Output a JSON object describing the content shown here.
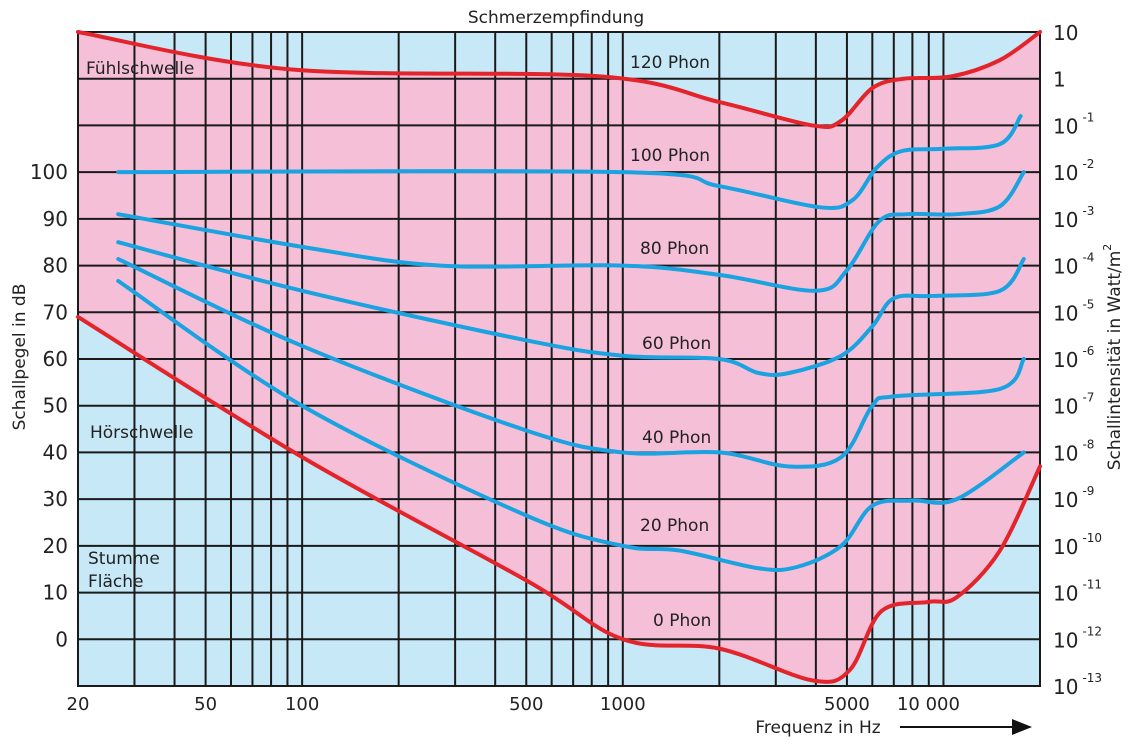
{
  "chart_data": {
    "type": "line",
    "title": "Schmerzempfindung",
    "xlabel": "Frequenz in Hz",
    "ylabel": "Schallpegel in dB",
    "y2label": "Schallintensität in Watt/m",
    "y2label_sup": "2",
    "x_scale": "log",
    "xlim": [
      20,
      20000
    ],
    "ylim": [
      -10,
      130
    ],
    "grid": true,
    "x_gridlines": [
      20,
      30,
      40,
      50,
      60,
      70,
      80,
      90,
      100,
      200,
      300,
      400,
      500,
      600,
      700,
      800,
      900,
      1000,
      2000,
      3000,
      4000,
      5000,
      6000,
      7000,
      8000,
      9000,
      10000,
      20000
    ],
    "x_ticks": [
      {
        "value": 20,
        "label": "20"
      },
      {
        "value": 50,
        "label": "50"
      },
      {
        "value": 100,
        "label": "100"
      },
      {
        "value": 500,
        "label": "500"
      },
      {
        "value": 1000,
        "label": "1000"
      },
      {
        "value": 5000,
        "label": "5000"
      },
      {
        "value": 10000,
        "label": "10 000"
      }
    ],
    "y_ticks": [
      0,
      10,
      20,
      30,
      40,
      50,
      60,
      70,
      80,
      90,
      100
    ],
    "y2_ticks": [
      {
        "dB": 130,
        "base": "10",
        "exp": ""
      },
      {
        "dB": 120,
        "base": "1",
        "exp": ""
      },
      {
        "dB": 110,
        "base": "10",
        "exp": "-1"
      },
      {
        "dB": 100,
        "base": "10",
        "exp": "-2"
      },
      {
        "dB": 90,
        "base": "10",
        "exp": "-3"
      },
      {
        "dB": 80,
        "base": "10",
        "exp": "-4"
      },
      {
        "dB": 70,
        "base": "10",
        "exp": "-5"
      },
      {
        "dB": 60,
        "base": "10",
        "exp": "-6"
      },
      {
        "dB": 50,
        "base": "10",
        "exp": "-7"
      },
      {
        "dB": 40,
        "base": "10",
        "exp": "-8"
      },
      {
        "dB": 30,
        "base": "10",
        "exp": "-9"
      },
      {
        "dB": 20,
        "base": "10",
        "exp": "-10"
      },
      {
        "dB": 10,
        "base": "10",
        "exp": "-11"
      },
      {
        "dB": 0,
        "base": "10",
        "exp": "-12"
      },
      {
        "dB": -10,
        "base": "10",
        "exp": "-13"
      }
    ],
    "series": [
      {
        "name": "120 Phon",
        "color": "#e3242b",
        "boundary": "top",
        "x": [
          20,
          92,
          850,
          2000,
          3900,
          4800,
          6000,
          7500,
          10600,
          15000,
          20000
        ],
        "y": [
          130,
          122,
          120.5,
          115,
          110,
          111,
          118,
          120,
          120.5,
          124,
          130
        ]
      },
      {
        "name": "100 Phon",
        "color": "#1aa3e0",
        "x": [
          26.7,
          1000,
          2000,
          4100,
          5200,
          6200,
          7400,
          10000,
          15000,
          17400
        ],
        "y": [
          100,
          100,
          97,
          92.5,
          94,
          101,
          104.5,
          105,
          106,
          112
        ]
      },
      {
        "name": "80 Phon",
        "color": "#1aa3e0",
        "x": [
          26.7,
          100,
          270,
          1000,
          2000,
          4000,
          5000,
          6300,
          7700,
          11000,
          15000,
          17800
        ],
        "y": [
          91,
          84,
          80,
          80,
          78,
          74.6,
          79,
          89.5,
          91,
          91,
          92.7,
          100
        ]
      },
      {
        "name": "60 Phon",
        "color": "#1aa3e0",
        "x": [
          26.7,
          100,
          500,
          1000,
          2000,
          2650,
          3300,
          4800,
          6000,
          7000,
          9300,
          15000,
          17800
        ],
        "y": [
          85,
          74.6,
          64,
          60.7,
          60,
          57,
          57,
          60.7,
          67,
          73,
          73.5,
          74.6,
          81.4
        ]
      },
      {
        "name": "40 Phon",
        "color": "#1aa3e0",
        "x": [
          26.7,
          100,
          500,
          1000,
          2000,
          3300,
          4800,
          6000,
          7000,
          15000,
          17800
        ],
        "y": [
          81.4,
          62.8,
          44.7,
          40,
          40,
          37,
          39,
          50,
          52,
          53.6,
          60
        ]
      },
      {
        "name": "20 Phon",
        "color": "#1aa3e0",
        "x": [
          26.7,
          100,
          500,
          1000,
          1500,
          2650,
          3500,
          4800,
          6000,
          8000,
          11000,
          17800
        ],
        "y": [
          76.7,
          50,
          26.5,
          20,
          19,
          15.2,
          15.5,
          20,
          28.6,
          29.7,
          30,
          40
        ]
      },
      {
        "name": "0 Phon",
        "color": "#e3242b",
        "boundary": "bottom",
        "x": [
          20,
          100,
          500,
          1000,
          2000,
          3900,
          5100,
          6400,
          9000,
          11000,
          15000,
          20000
        ],
        "y": [
          69,
          39,
          12.6,
          0,
          -2,
          -8.8,
          -6.6,
          6,
          8,
          9,
          19,
          37
        ]
      }
    ],
    "annotations": [
      "120 Phon",
      "100 Phon",
      "80 Phon",
      "60 Phon",
      "40 Phon",
      "20 Phon",
      "0 Phon",
      "Fühlschwelle",
      "Hörschwelle",
      "Stumme",
      "Fläche"
    ],
    "colors": {
      "background": "#c7e8f7",
      "audible_area": "#f5bfd8",
      "grid": "#1a1a1a"
    }
  }
}
